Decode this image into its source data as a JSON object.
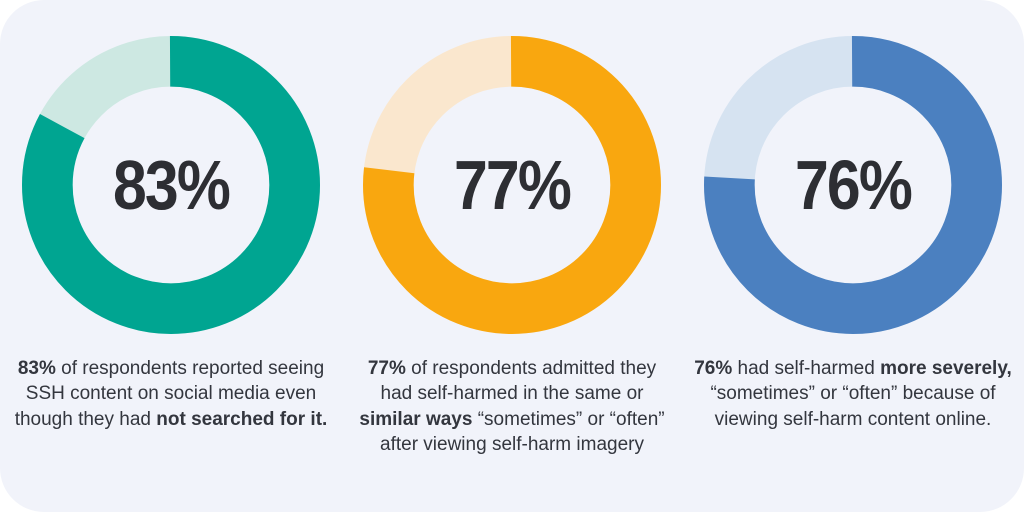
{
  "page": {
    "background": "#FFFFFF",
    "card_background": "#F1F3FA",
    "text_color": "#33363E",
    "percent_label_color": "#2D2E33"
  },
  "chart_data": [
    {
      "type": "pie",
      "variant": "donut",
      "center_label": "83%",
      "start_angle_deg": 0,
      "direction": "clockwise",
      "slices": [
        {
          "name": "respondents who saw SSH content without searching",
          "value": 83,
          "color": "#00A591"
        },
        {
          "name": "remainder",
          "value": 17,
          "color": "#CDE8E2"
        }
      ],
      "caption_segments": [
        {
          "text": "83%",
          "bold": true
        },
        {
          "text": " of respondents reported seeing SSH content on social media even though they had ",
          "bold": false
        },
        {
          "text": "not searched for it.",
          "bold": true
        }
      ]
    },
    {
      "type": "pie",
      "variant": "donut",
      "center_label": "77%",
      "start_angle_deg": 0,
      "direction": "clockwise",
      "slices": [
        {
          "name": "respondents who self-harmed in same or similar ways",
          "value": 77,
          "color": "#F9A70F"
        },
        {
          "name": "remainder",
          "value": 23,
          "color": "#FAE7CE"
        }
      ],
      "caption_segments": [
        {
          "text": "77%",
          "bold": true
        },
        {
          "text": " of respondents admitted they had self-harmed in the same or ",
          "bold": false
        },
        {
          "text": "similar ways",
          "bold": true
        },
        {
          "text": " “sometimes” or “often” after viewing self-harm imagery",
          "bold": false
        }
      ]
    },
    {
      "type": "pie",
      "variant": "donut",
      "center_label": "76%",
      "start_angle_deg": 0,
      "direction": "clockwise",
      "slices": [
        {
          "name": "respondents who self-harmed more severely",
          "value": 76,
          "color": "#4B80C0"
        },
        {
          "name": "remainder",
          "value": 24,
          "color": "#D6E3F1"
        }
      ],
      "caption_segments": [
        {
          "text": "76%",
          "bold": true
        },
        {
          "text": " had self-harmed ",
          "bold": false
        },
        {
          "text": "more severely,",
          "bold": true
        },
        {
          "text": " “sometimes” or “often” because of viewing self-harm content online.",
          "bold": false
        }
      ]
    }
  ]
}
